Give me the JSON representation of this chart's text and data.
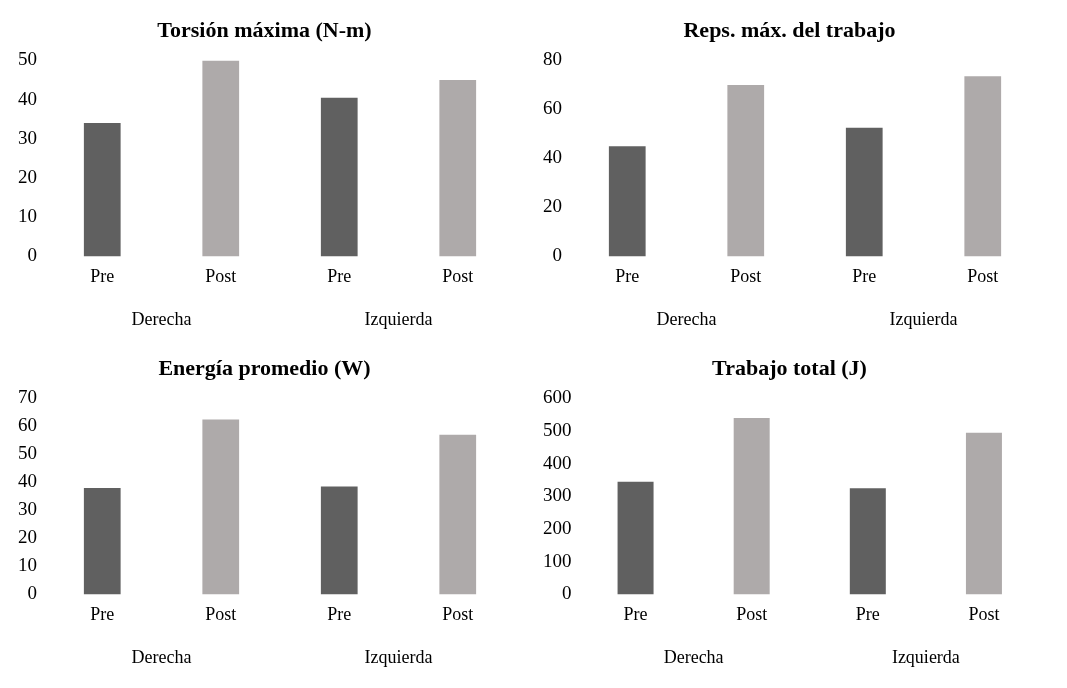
{
  "chart_data": [
    {
      "type": "bar",
      "title": "Torsión máxima (N-m)",
      "categories": [
        "Pre",
        "Post",
        "Pre",
        "Post"
      ],
      "values": [
        34,
        50,
        40.5,
        45
      ],
      "colors": [
        "#606060",
        "#aeaaaa",
        "#606060",
        "#aeaaaa"
      ],
      "ylim": [
        0,
        50
      ],
      "yticks": [
        0,
        10,
        20,
        30,
        40,
        50
      ],
      "annotations": [
        "Derecha",
        "Izquierda"
      ]
    },
    {
      "type": "bar",
      "title": "Reps. máx. del trabajo",
      "categories": [
        "Pre",
        "Post",
        "Pre",
        "Post"
      ],
      "values": [
        45,
        70,
        52.5,
        73.5
      ],
      "colors": [
        "#606060",
        "#aeaaaa",
        "#606060",
        "#aeaaaa"
      ],
      "ylim": [
        0,
        80
      ],
      "yticks": [
        0,
        20,
        40,
        60,
        80
      ],
      "annotations": [
        "Derecha",
        "Izquierda"
      ]
    },
    {
      "type": "bar",
      "title": "Energía promedio (W)",
      "categories": [
        "Pre",
        "Post",
        "Pre",
        "Post"
      ],
      "values": [
        38,
        62.5,
        38.5,
        57
      ],
      "colors": [
        "#606060",
        "#aeaaaa",
        "#606060",
        "#aeaaaa"
      ],
      "ylim": [
        0,
        70
      ],
      "yticks": [
        0,
        10,
        20,
        30,
        40,
        50,
        60,
        70
      ],
      "annotations": [
        "Derecha",
        "Izquierda"
      ]
    },
    {
      "type": "bar",
      "title": "Trabajo total (J)",
      "categories": [
        "Pre",
        "Post",
        "Pre",
        "Post"
      ],
      "values": [
        345,
        540,
        325,
        495
      ],
      "colors": [
        "#606060",
        "#aeaaaa",
        "#606060",
        "#aeaaaa"
      ],
      "ylim": [
        0,
        600
      ],
      "yticks": [
        0,
        100,
        200,
        300,
        400,
        500,
        600
      ],
      "annotations": [
        "Derecha",
        "Izquierda"
      ]
    }
  ]
}
